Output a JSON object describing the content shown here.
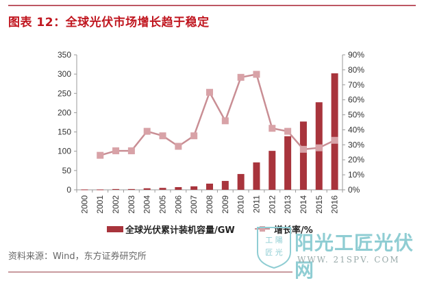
{
  "header": {
    "title": "图表 12：全球光伏市场增长趋于稳定"
  },
  "chart_data": {
    "type": "bar",
    "title": "图表 12：全球光伏市场增长趋于稳定",
    "categories": [
      "2000",
      "2001",
      "2002",
      "2003",
      "2004",
      "2005",
      "2006",
      "2007",
      "2008",
      "2009",
      "2010",
      "2011",
      "2012",
      "2013",
      "2014",
      "2015",
      "2016"
    ],
    "series": [
      {
        "name": "全球光伏累计装机容量/GW",
        "type": "bar",
        "axis": "left",
        "color": "#a8343c",
        "values": [
          1,
          1,
          2,
          2,
          4,
          5,
          7,
          9,
          16,
          23,
          41,
          71,
          101,
          139,
          177,
          227,
          302
        ]
      },
      {
        "name": "增长率/%",
        "type": "line",
        "axis": "right",
        "color": "#c98e94",
        "values": [
          null,
          23,
          26,
          26,
          39,
          36,
          29,
          36,
          65,
          46,
          75,
          77,
          41,
          39,
          27,
          28,
          33
        ]
      }
    ],
    "left_axis": {
      "ylim": [
        0,
        350
      ],
      "ticks": [
        "0",
        "50",
        "100",
        "150",
        "200",
        "250",
        "300",
        "350"
      ]
    },
    "right_axis": {
      "ylim": [
        0,
        90
      ],
      "ticks": [
        "0%",
        "10%",
        "20%",
        "30%",
        "40%",
        "50%",
        "60%",
        "70%",
        "80%",
        "90%"
      ]
    },
    "xlabel": "",
    "ylabel": "",
    "grid": false,
    "legend_position": "bottom"
  },
  "legend": {
    "bar_label": "全球光伏累计装机容量/GW",
    "line_label": "增长率/%"
  },
  "footer": {
    "source": "资料来源：Wind，东方证券研究所"
  },
  "watermark": {
    "badge_top": "工 陽",
    "badge_bottom": "匠 光",
    "title": "阳光工匠光伏网",
    "url": "WWW. 21SPV. COM"
  }
}
